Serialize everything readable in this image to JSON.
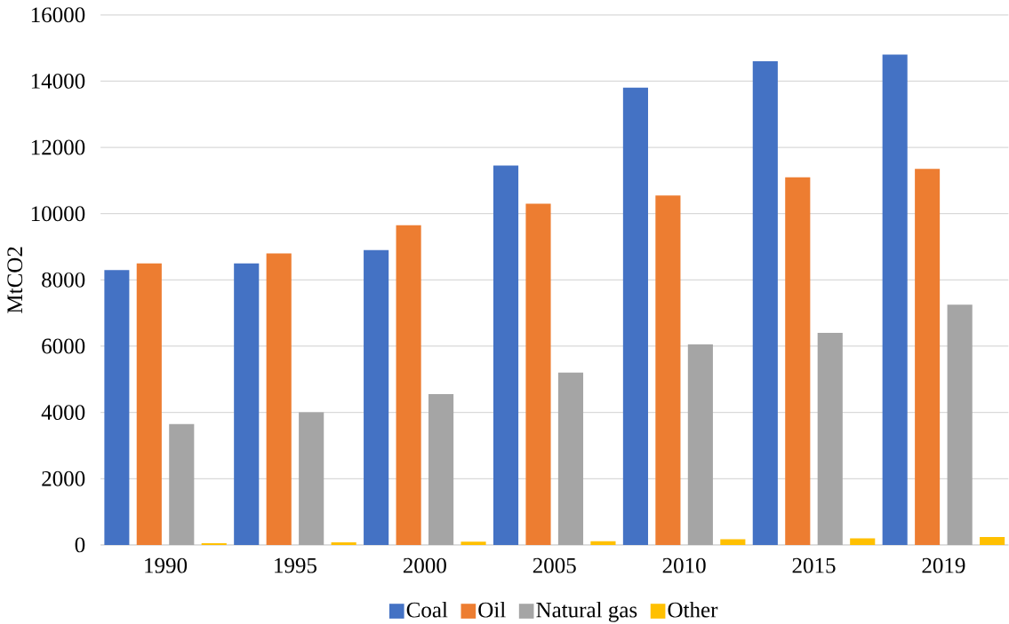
{
  "chart_data": {
    "type": "bar",
    "ylabel": "MtCO2",
    "categories": [
      "1990",
      "1995",
      "2000",
      "2005",
      "2010",
      "2015",
      "2019"
    ],
    "series": [
      {
        "name": "Coal",
        "color": "#4472c4",
        "values": [
          8300,
          8500,
          8900,
          11450,
          13800,
          14600,
          14800
        ]
      },
      {
        "name": "Oil",
        "color": "#ed7d31",
        "values": [
          8500,
          8800,
          9650,
          10300,
          10550,
          11100,
          11350
        ]
      },
      {
        "name": "Natural gas",
        "color": "#a5a5a5",
        "values": [
          3650,
          4000,
          4550,
          5200,
          6050,
          6400,
          7250
        ]
      },
      {
        "name": "Other",
        "color": "#ffc000",
        "values": [
          50,
          80,
          100,
          110,
          170,
          200,
          240
        ]
      }
    ],
    "ylim": [
      0,
      16000
    ],
    "yticks": [
      0,
      2000,
      4000,
      6000,
      8000,
      10000,
      12000,
      14000,
      16000
    ],
    "grid": "y",
    "legend": "bottom"
  }
}
